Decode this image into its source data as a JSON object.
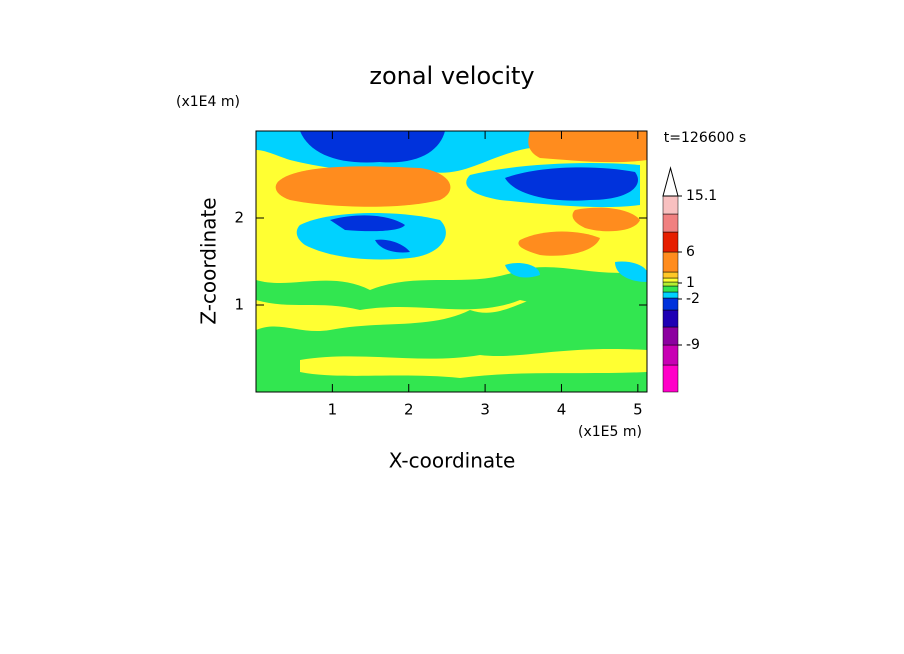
{
  "chart_data": {
    "type": "contour",
    "title": "zonal velocity",
    "x_label": "X-coordinate",
    "y_label": "Z-coordinate",
    "x_unit": "(x1E5 m)",
    "y_unit": "(x1E4 m)",
    "annotation": "t=126600 s",
    "xlim": [
      0,
      5.12
    ],
    "xticks": [
      1,
      2,
      3,
      4,
      5
    ],
    "ylim": [
      0,
      3.0
    ],
    "yticks": [
      1,
      2
    ],
    "colorbar": {
      "colors": [
        "#ff00c8",
        "#c800b4",
        "#8c00a0",
        "#1e00b4",
        "#0032dc",
        "#00d2ff",
        "#32e650",
        "#b4f032",
        "#ffff32",
        "#ffc828",
        "#ff8c1e",
        "#e61e00",
        "#f08080",
        "#f8c0c0"
      ],
      "ticks": [
        -9,
        -2,
        1,
        6,
        15.1
      ]
    }
  }
}
